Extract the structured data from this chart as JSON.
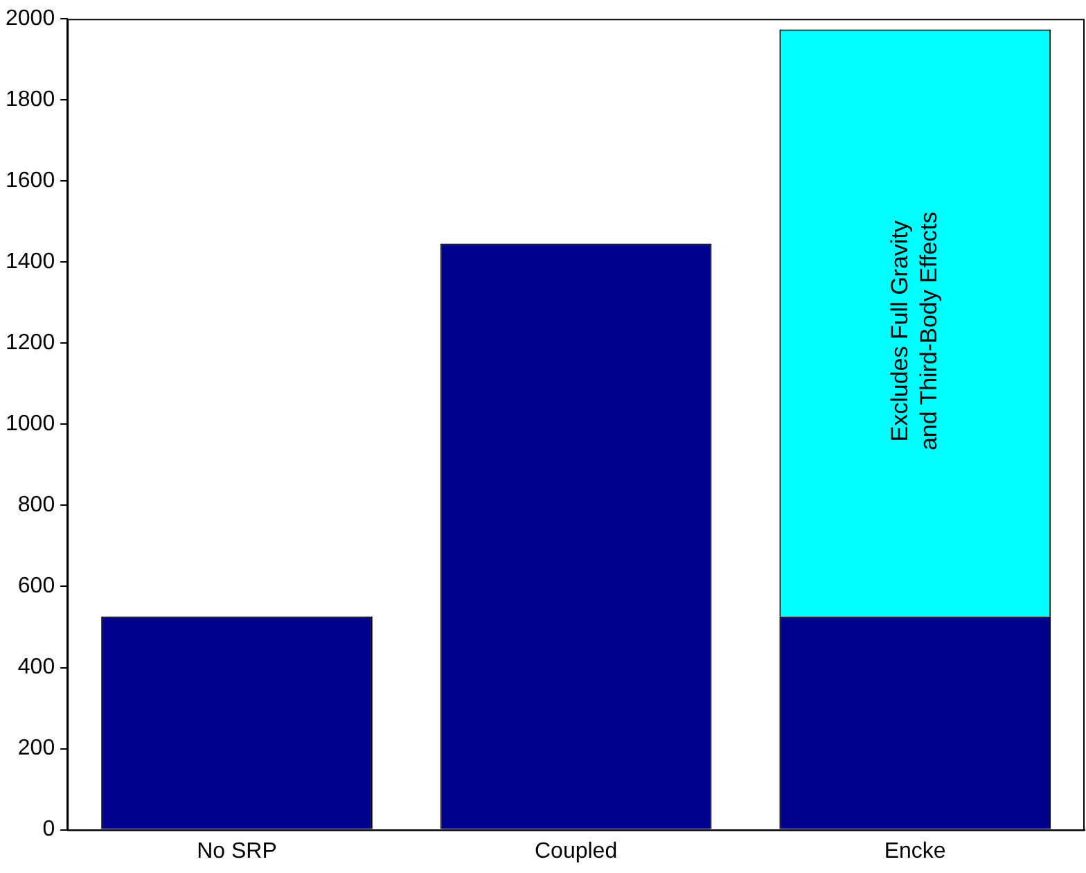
{
  "chart_data": {
    "type": "bar",
    "stacked": true,
    "categories": [
      "No SRP",
      "Coupled",
      "Encke"
    ],
    "series": [
      {
        "color": "#00008f",
        "values": [
          526,
          1446,
          526
        ]
      },
      {
        "color": "#00ffff",
        "values": [
          null,
          null,
          1448
        ]
      }
    ],
    "ylim": [
      0,
      2000
    ],
    "yticks": [
      0,
      200,
      400,
      600,
      800,
      1000,
      1200,
      1400,
      1600,
      1800,
      2000
    ],
    "grid": false,
    "legend": false,
    "annotations": [
      "Excludes Full Gravity\nand Third-Body Effects"
    ]
  }
}
